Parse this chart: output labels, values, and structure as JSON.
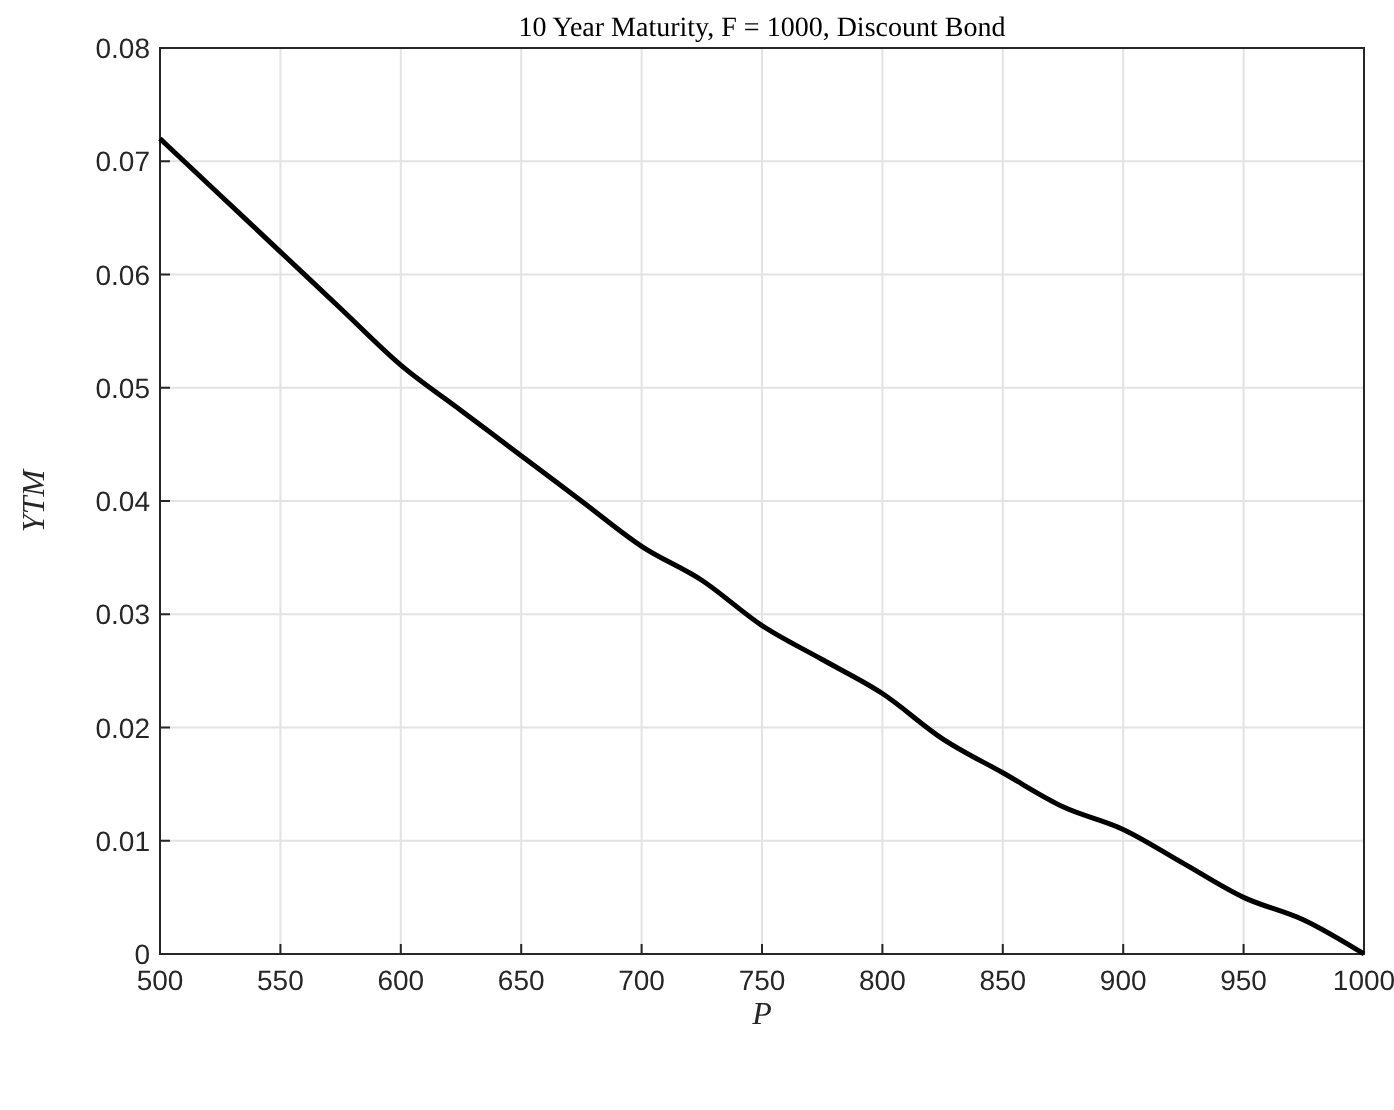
{
  "chart_data": {
    "type": "line",
    "title": "10 Year Maturity, F = 1000, Discount Bond",
    "xlabel": "P",
    "ylabel": "YTM",
    "x": [
      500,
      525,
      550,
      575,
      600,
      625,
      650,
      675,
      700,
      725,
      750,
      775,
      800,
      825,
      850,
      875,
      900,
      925,
      950,
      975,
      1000
    ],
    "series": [
      {
        "color": "#000000",
        "values": [
          0.072,
          0.067,
          0.062,
          0.057,
          0.052,
          0.048,
          0.044,
          0.04,
          0.036,
          0.033,
          0.029,
          0.026,
          0.023,
          0.019,
          0.016,
          0.013,
          0.011,
          0.008,
          0.005,
          0.003,
          0
        ]
      }
    ],
    "xlim": [
      500,
      1000
    ],
    "xticks": [
      500,
      550,
      600,
      650,
      700,
      750,
      800,
      850,
      900,
      950,
      1000
    ],
    "ylim": [
      0,
      0.08
    ],
    "yticks": [
      0,
      0.01,
      0.02,
      0.03,
      0.04,
      0.05,
      0.06,
      0.07,
      0.08
    ],
    "grid": true,
    "marker": "none",
    "line_style": "solid"
  }
}
